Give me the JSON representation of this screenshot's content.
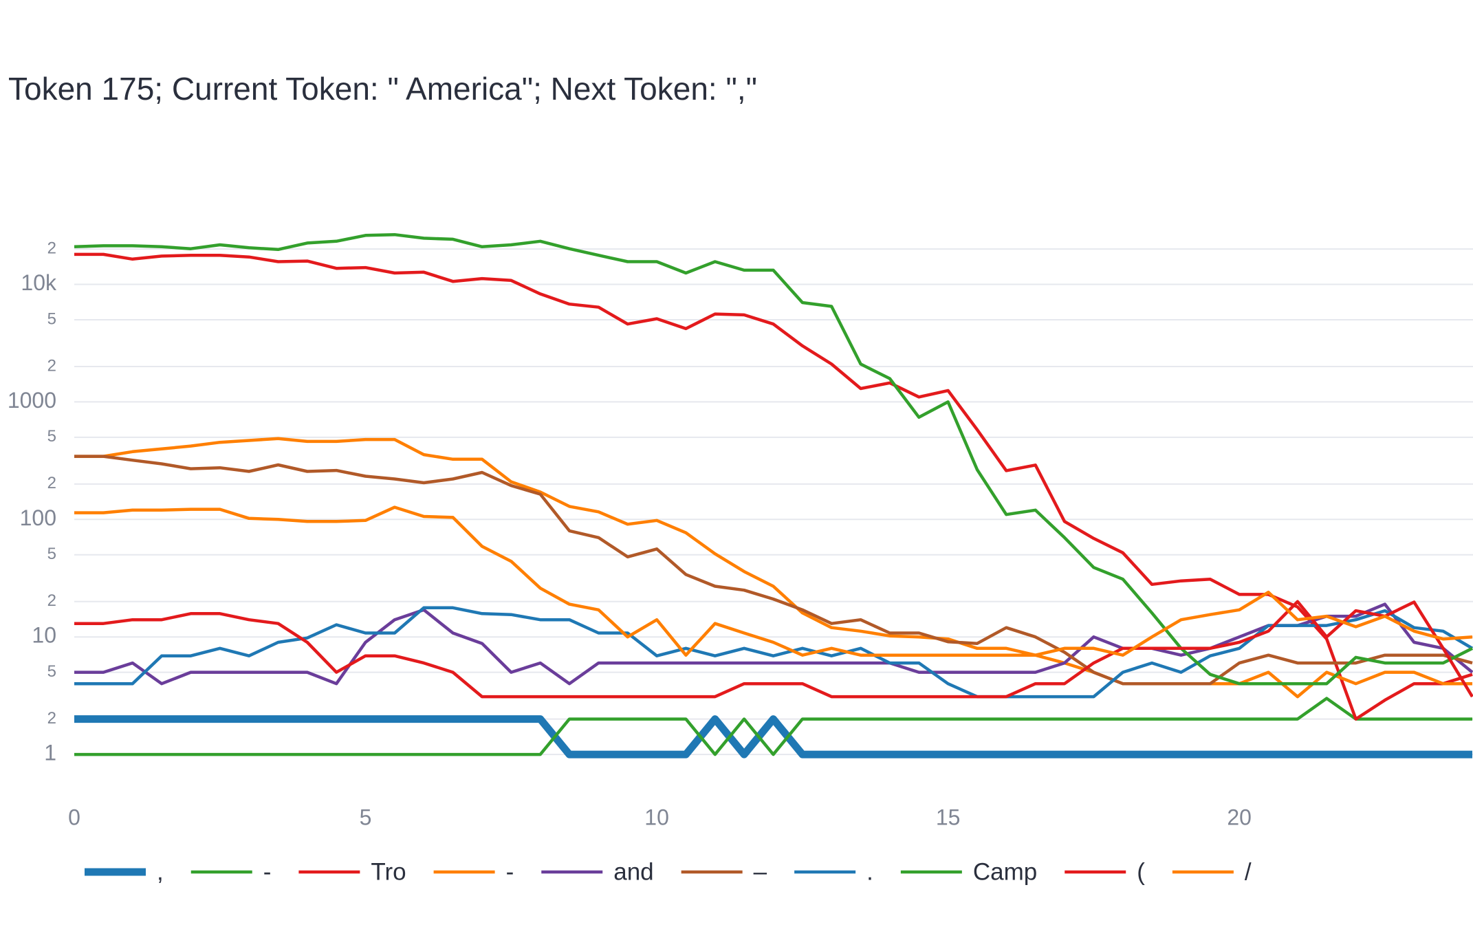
{
  "chart_data": {
    "type": "line",
    "title": "Token 175; Current Token: \" America\"; Next Token: \",\"",
    "ylog": true,
    "grid": true,
    "legend": "bottom",
    "x": [
      0,
      0.5,
      1,
      1.5,
      2,
      2.5,
      3,
      3.5,
      4,
      4.5,
      5,
      5.5,
      6,
      6.5,
      7,
      7.5,
      8,
      8.5,
      9,
      9.5,
      10,
      10.5,
      11,
      11.5,
      12,
      12.5,
      13,
      13.5,
      14,
      14.5,
      15,
      15.5,
      16,
      16.5,
      17,
      17.5,
      18,
      18.5,
      19,
      19.5,
      20,
      20.5,
      21,
      21.5,
      22,
      22.5,
      23,
      23.5,
      24
    ],
    "xlim": [
      0,
      24
    ],
    "xticks": [
      0,
      5,
      10,
      15,
      20
    ],
    "ylim": [
      0.6,
      30000
    ],
    "yticks": [
      1,
      2,
      5,
      10,
      {
        "value": 20,
        "label": "2"
      },
      {
        "value": 50,
        "label": "5"
      },
      100,
      {
        "value": 200,
        "label": "2"
      },
      {
        "value": 500,
        "label": "5"
      },
      1000,
      {
        "value": 2000,
        "label": "2"
      },
      {
        "value": 5000,
        "label": "5"
      },
      {
        "value": 10000,
        "label": "10k"
      },
      {
        "value": 20000,
        "label": "2"
      }
    ],
    "series": [
      {
        "name": ",",
        "color": "#1f78b4",
        "values": [
          2,
          2,
          2,
          2,
          2,
          2,
          2,
          2,
          2,
          2,
          2,
          2,
          2,
          2,
          2,
          2,
          2,
          1,
          1,
          1,
          1,
          1,
          2,
          1,
          2,
          1,
          1,
          1,
          1,
          1,
          1,
          1,
          1,
          1,
          1,
          1,
          1,
          1,
          1,
          1,
          1,
          1,
          1,
          1,
          1,
          1,
          1,
          1,
          1
        ]
      },
      {
        "name": "-",
        "color": "#33a02c",
        "values": [
          1,
          1,
          1,
          1,
          1,
          1,
          1,
          1,
          1,
          1,
          1,
          1,
          1,
          1,
          1,
          1,
          1,
          2,
          2,
          2,
          2,
          2,
          1,
          2,
          1,
          2,
          2,
          2,
          2,
          2,
          2,
          2,
          2,
          2,
          2,
          2,
          2,
          2,
          2,
          2,
          2,
          2,
          2,
          3,
          2,
          2,
          2,
          2,
          2
        ]
      },
      {
        "name": "Tro",
        "color": "#e31a1c",
        "values": [
          18000,
          18000,
          16400,
          17400,
          17700,
          17700,
          17100,
          15600,
          15800,
          13700,
          13900,
          12500,
          12700,
          10600,
          11200,
          10800,
          8300,
          6800,
          6400,
          4600,
          5100,
          4200,
          5600,
          5500,
          4600,
          3000,
          2100,
          1300,
          1450,
          1100,
          1250,
          580,
          260,
          290,
          96,
          69,
          52,
          28,
          30,
          31,
          23,
          23,
          18,
          9.6,
          2,
          2.9,
          4,
          4,
          4.8
        ]
      },
      {
        "name": "-",
        "color": "#ff7f00",
        "values": [
          344,
          344,
          377,
          398,
          421,
          453,
          470,
          488,
          461,
          461,
          479,
          479,
          356,
          325,
          325,
          209,
          171,
          129,
          116,
          91,
          98,
          77,
          51,
          36,
          27,
          16,
          12,
          11.2,
          10.2,
          10,
          9.6,
          8,
          8,
          7,
          6,
          5,
          4,
          4,
          4,
          4,
          4,
          5,
          3.1,
          5,
          4,
          5,
          5,
          4,
          4
        ]
      },
      {
        "name": "and",
        "color": "#6a3d9a",
        "values": [
          5,
          5,
          6,
          4,
          5,
          5,
          5,
          5,
          5,
          4,
          9,
          14,
          17,
          10.8,
          8.8,
          5,
          6,
          4,
          6,
          6,
          6,
          6,
          6,
          6,
          6,
          6,
          6,
          6,
          6,
          5,
          5,
          5,
          5,
          5,
          6,
          10,
          8,
          8,
          7,
          8,
          10,
          12.5,
          12.5,
          15,
          15,
          19,
          9,
          8,
          5
        ]
      },
      {
        "name": "–",
        "color": "#b15928",
        "values": [
          344,
          344,
          319,
          297,
          270,
          275,
          256,
          291,
          256,
          261,
          233,
          221,
          205,
          221,
          251,
          194,
          164,
          80,
          70,
          48,
          56,
          34,
          27,
          25,
          21,
          17,
          13,
          14,
          10.8,
          10.8,
          9.1,
          8.8,
          12,
          10,
          7.4,
          5,
          4,
          4,
          4,
          4,
          6,
          7,
          6,
          6,
          6,
          7,
          7,
          7,
          6
        ]
      },
      {
        "name": ".",
        "color": "#1f78b4",
        "values": [
          4,
          4,
          4,
          6.9,
          6.9,
          8,
          6.9,
          9,
          9.8,
          12.7,
          10.8,
          10.8,
          17.7,
          17.7,
          15.8,
          15.5,
          14,
          14,
          10.8,
          10.8,
          6.9,
          8,
          6.9,
          8,
          6.9,
          8,
          6.9,
          8,
          6,
          6,
          4,
          3.1,
          3.1,
          3.1,
          3.1,
          3.1,
          5,
          6,
          5,
          6.9,
          8,
          12.5,
          12.5,
          12.5,
          14,
          16.7,
          12,
          11.2,
          8
        ]
      },
      {
        "name": "Camp",
        "color": "#33a02c",
        "values": [
          20900,
          21300,
          21300,
          20900,
          20100,
          21700,
          20500,
          19800,
          22500,
          23300,
          26100,
          26500,
          24700,
          24200,
          20900,
          21700,
          23300,
          20100,
          17700,
          15600,
          15600,
          12500,
          15600,
          13200,
          13200,
          7000,
          6500,
          2100,
          1580,
          740,
          1000,
          265,
          110,
          120,
          70,
          39,
          31,
          16,
          8,
          4.8,
          4,
          4,
          4,
          4,
          6.7,
          6,
          6,
          6,
          8
        ]
      },
      {
        "name": "(",
        "color": "#e31a1c",
        "values": [
          13,
          13,
          14,
          14,
          15.8,
          15.8,
          14,
          13,
          9,
          5,
          6.9,
          6.9,
          6,
          5,
          3.1,
          3.1,
          3.1,
          3.1,
          3.1,
          3.1,
          3.1,
          3.1,
          3.1,
          4,
          4,
          4,
          3.1,
          3.1,
          3.1,
          3.1,
          3.1,
          3.1,
          3.1,
          4,
          4,
          6,
          8,
          8,
          8,
          8,
          9,
          11.2,
          20,
          10,
          16.7,
          15,
          19.8,
          8,
          3.1
        ]
      },
      {
        "name": "/",
        "color": "#ff7f00",
        "values": [
          114,
          114,
          120,
          120,
          122,
          122,
          102,
          100,
          96,
          96,
          98,
          127,
          106,
          104,
          59,
          44,
          26,
          19,
          17,
          10,
          14,
          7,
          13,
          10.8,
          9,
          7,
          8,
          7,
          7,
          7,
          7,
          7,
          7,
          7,
          8,
          8,
          7,
          10,
          14,
          15.5,
          17,
          24,
          14,
          15,
          12.2,
          15,
          11.2,
          9.6,
          10
        ]
      }
    ]
  }
}
